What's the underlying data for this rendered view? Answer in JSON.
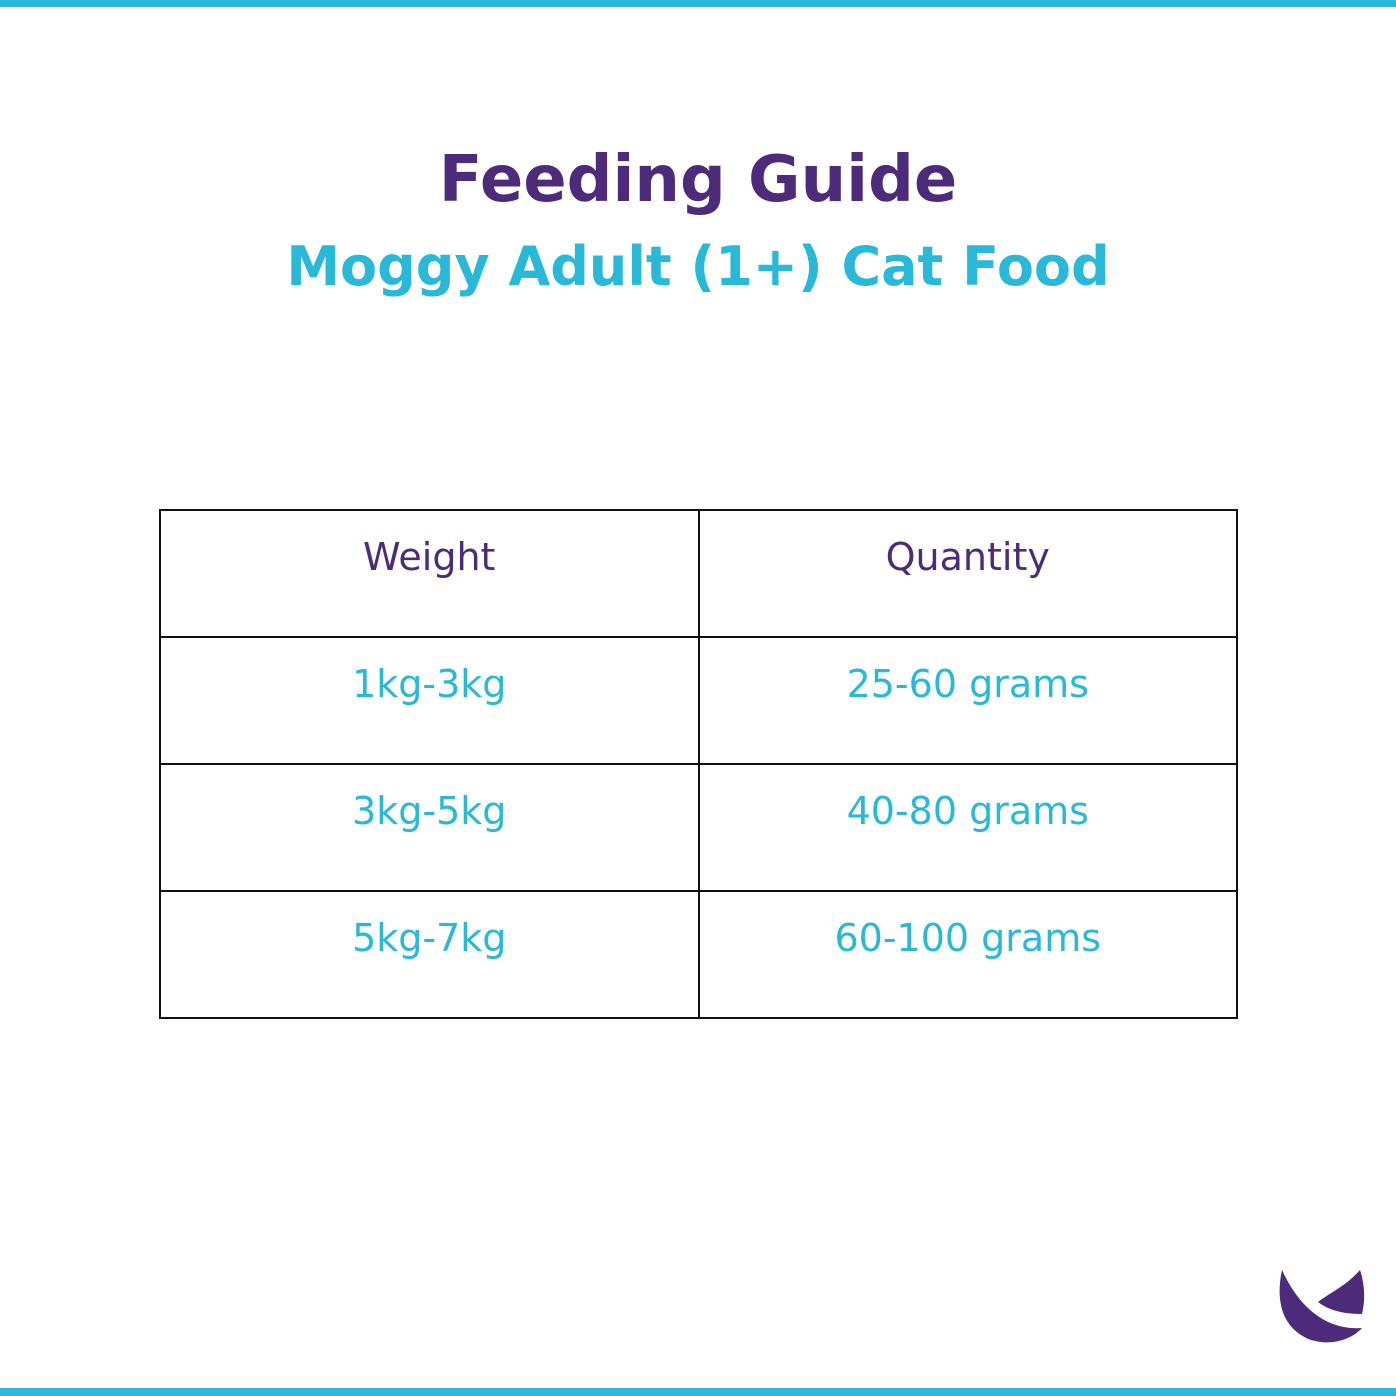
{
  "title": "Feeding Guide",
  "subtitle": "Moggy Adult (1+) Cat Food",
  "table": {
    "headers": [
      "Weight",
      "Quantity"
    ],
    "rows": [
      [
        "1kg-3kg",
        "25-60 grams"
      ],
      [
        "3kg-5kg",
        "40-80 grams"
      ],
      [
        "5kg-7kg",
        "60-100 grams"
      ]
    ]
  },
  "colors": {
    "purple": "#4e2a7a",
    "cyan": "#29b8d8"
  },
  "logo_icon": "brand-logo-icon"
}
